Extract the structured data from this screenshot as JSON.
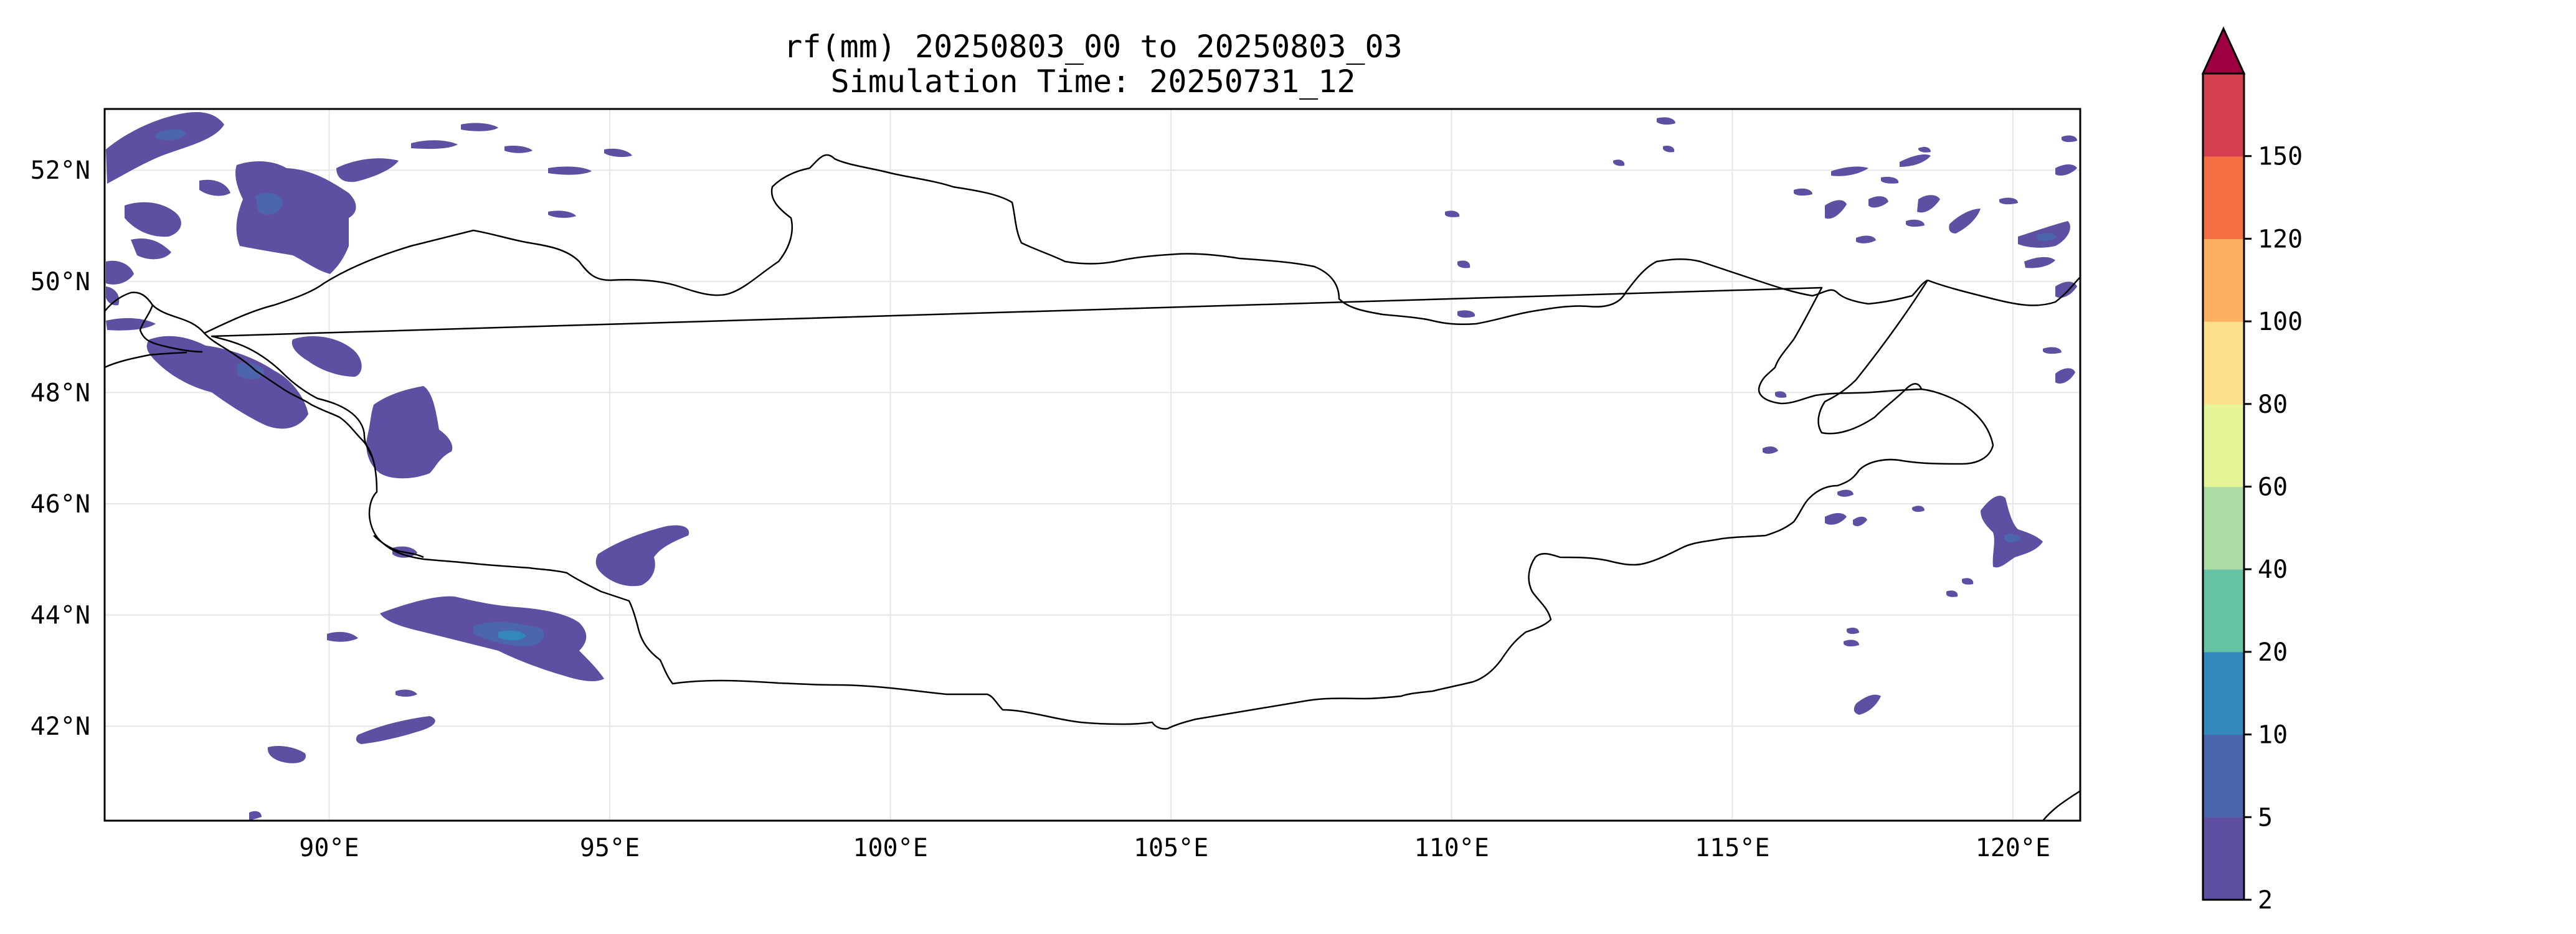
{
  "title": {
    "line1": "rf(mm) 20250803_00 to 20250803_03",
    "line2": "Simulation Time: 20250731_12"
  },
  "map": {
    "extent": {
      "lon_min": 86,
      "lon_max": 121.2,
      "lat_min": 40.3,
      "lat_max": 53.1
    },
    "gridlines": true,
    "lon_ticks": [
      90,
      95,
      100,
      105,
      110,
      115,
      120
    ],
    "lon_tick_labels": [
      "90°E",
      "95°E",
      "100°E",
      "105°E",
      "110°E",
      "115°E",
      "120°E"
    ],
    "lat_ticks": [
      52,
      50,
      48,
      46,
      44,
      42
    ],
    "lat_tick_labels": [
      "52°N",
      "50°N",
      "48°N",
      "46°N",
      "44°N",
      "42°N"
    ]
  },
  "colorbar": {
    "levels": [
      2,
      5,
      10,
      20,
      40,
      60,
      80,
      100,
      120,
      150
    ],
    "level_labels": [
      "2",
      "5",
      "10",
      "20",
      "40",
      "60",
      "80",
      "100",
      "120",
      "150"
    ],
    "colors": [
      "#5e4fa2",
      "#4b66ad",
      "#3288bd",
      "#66c2a5",
      "#abdda4",
      "#e6f598",
      "#fee08b",
      "#fdae61",
      "#f46d43",
      "#d53e4f"
    ],
    "extend_color": "#9e0142",
    "extend": "max"
  }
}
